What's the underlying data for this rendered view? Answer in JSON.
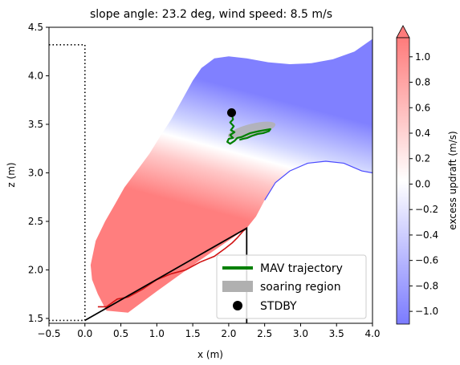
{
  "chart_data": {
    "type": "heatmap",
    "title": "slope angle: 23.2 deg, wind speed: 8.5 m/s",
    "xlabel": "x (m)",
    "ylabel": "z (m)",
    "xlim": [
      -0.5,
      4.0
    ],
    "ylim": [
      1.45,
      4.5
    ],
    "x_ticks": [
      -0.5,
      0.0,
      0.5,
      1.0,
      1.5,
      2.0,
      2.5,
      3.0,
      3.5,
      4.0
    ],
    "x_tick_labels": [
      "−0.5",
      "0.0",
      "0.5",
      "1.0",
      "1.5",
      "2.0",
      "2.5",
      "3.0",
      "3.5",
      "4.0"
    ],
    "y_ticks": [
      1.5,
      2.0,
      2.5,
      3.0,
      3.5,
      4.0,
      4.5
    ],
    "y_tick_labels": [
      "1.5",
      "2.0",
      "2.5",
      "3.0",
      "3.5",
      "4.0",
      "4.5"
    ],
    "colorbar": {
      "label": "excess updraft (m/s)",
      "range": [
        -1.1,
        1.15
      ],
      "ticks": [
        -1.0,
        -0.8,
        -0.6,
        -0.4,
        -0.2,
        0.0,
        0.2,
        0.4,
        0.6,
        0.8,
        1.0
      ],
      "tick_labels": [
        "−1.0",
        "−0.8",
        "−0.6",
        "−0.4",
        "−0.2",
        "0.0",
        "0.2",
        "0.4",
        "0.6",
        "0.8",
        "1.0"
      ],
      "colormap": "bwr",
      "extend": "max"
    },
    "slope": {
      "points": [
        [
          0.0,
          1.48
        ],
        [
          2.25,
          2.43
        ],
        [
          2.25,
          1.45
        ]
      ],
      "color": "#000000"
    },
    "dotted_boundary": {
      "points": [
        [
          -0.5,
          4.32
        ],
        [
          0.0,
          4.32
        ],
        [
          0.0,
          1.48
        ],
        [
          -0.5,
          1.48
        ]
      ]
    },
    "field_extent": {
      "upper_edge": [
        [
          0.08,
          2.05
        ],
        [
          0.15,
          2.3
        ],
        [
          0.28,
          2.5
        ],
        [
          0.42,
          2.68
        ],
        [
          0.55,
          2.85
        ],
        [
          0.72,
          3.02
        ],
        [
          0.9,
          3.2
        ],
        [
          1.05,
          3.38
        ],
        [
          1.2,
          3.55
        ],
        [
          1.35,
          3.75
        ],
        [
          1.5,
          3.95
        ],
        [
          1.62,
          4.08
        ],
        [
          1.8,
          4.18
        ],
        [
          2.0,
          4.2
        ],
        [
          2.25,
          4.18
        ],
        [
          2.55,
          4.14
        ],
        [
          2.85,
          4.12
        ],
        [
          3.15,
          4.13
        ],
        [
          3.45,
          4.17
        ],
        [
          3.75,
          4.25
        ],
        [
          4.0,
          4.38
        ]
      ],
      "lower_edge": [
        [
          4.0,
          3.0
        ],
        [
          3.85,
          3.02
        ],
        [
          3.6,
          3.1
        ],
        [
          3.35,
          3.12
        ],
        [
          3.1,
          3.1
        ],
        [
          2.85,
          3.02
        ],
        [
          2.65,
          2.9
        ],
        [
          2.5,
          2.72
        ],
        [
          2.38,
          2.55
        ],
        [
          2.25,
          2.43
        ],
        [
          1.6,
          2.1
        ],
        [
          1.0,
          1.78
        ],
        [
          0.6,
          1.56
        ],
        [
          0.3,
          1.58
        ],
        [
          0.18,
          1.75
        ],
        [
          0.1,
          1.9
        ]
      ],
      "positive_threshold_line": [
        [
          0.18,
          1.62
        ],
        [
          0.3,
          1.62
        ],
        [
          0.45,
          1.7
        ],
        [
          0.6,
          1.72
        ],
        [
          0.8,
          1.8
        ],
        [
          1.0,
          1.9
        ],
        [
          1.2,
          1.96
        ],
        [
          1.4,
          2.0
        ],
        [
          1.6,
          2.08
        ],
        [
          1.8,
          2.14
        ],
        [
          1.95,
          2.22
        ],
        [
          2.05,
          2.28
        ],
        [
          2.12,
          2.33
        ],
        [
          2.2,
          2.4
        ],
        [
          2.25,
          2.43
        ]
      ],
      "upper_outline_right": [
        [
          2.5,
          2.72
        ],
        [
          2.65,
          2.9
        ],
        [
          2.85,
          3.02
        ],
        [
          3.1,
          3.1
        ],
        [
          3.35,
          3.12
        ],
        [
          3.6,
          3.1
        ],
        [
          3.85,
          3.02
        ],
        [
          4.0,
          3.0
        ]
      ]
    },
    "soaring_region": {
      "center": [
        2.32,
        3.44
      ],
      "rx": 0.34,
      "ry": 0.04,
      "angle_deg": 14,
      "color": "#b0b0b0"
    },
    "mav_trajectory": {
      "color": "#008000",
      "points": [
        [
          2.04,
          3.61
        ],
        [
          2.06,
          3.55
        ],
        [
          2.02,
          3.52
        ],
        [
          2.07,
          3.48
        ],
        [
          2.03,
          3.44
        ],
        [
          2.08,
          3.42
        ],
        [
          2.02,
          3.39
        ],
        [
          2.06,
          3.36
        ],
        [
          2.0,
          3.35
        ],
        [
          1.98,
          3.32
        ],
        [
          2.02,
          3.3
        ],
        [
          2.08,
          3.33
        ],
        [
          2.12,
          3.36
        ],
        [
          2.18,
          3.37
        ],
        [
          2.24,
          3.39
        ],
        [
          2.3,
          3.41
        ],
        [
          2.36,
          3.42
        ],
        [
          2.42,
          3.43
        ],
        [
          2.5,
          3.44
        ],
        [
          2.58,
          3.45
        ],
        [
          2.56,
          3.43
        ],
        [
          2.48,
          3.41
        ],
        [
          2.4,
          3.4
        ],
        [
          2.32,
          3.38
        ],
        [
          2.26,
          3.36
        ],
        [
          2.2,
          3.35
        ],
        [
          2.15,
          3.34
        ]
      ]
    },
    "stdby_point": [
      2.04,
      3.62
    ],
    "legend": {
      "location": "lower right",
      "entries": [
        {
          "label": "MAV trajectory",
          "marker": "line",
          "color": "#008000"
        },
        {
          "label": "soaring region",
          "marker": "patch",
          "color": "#b0b0b0"
        },
        {
          "label": "STDBY",
          "marker": "dot",
          "color": "#000000"
        }
      ]
    }
  }
}
